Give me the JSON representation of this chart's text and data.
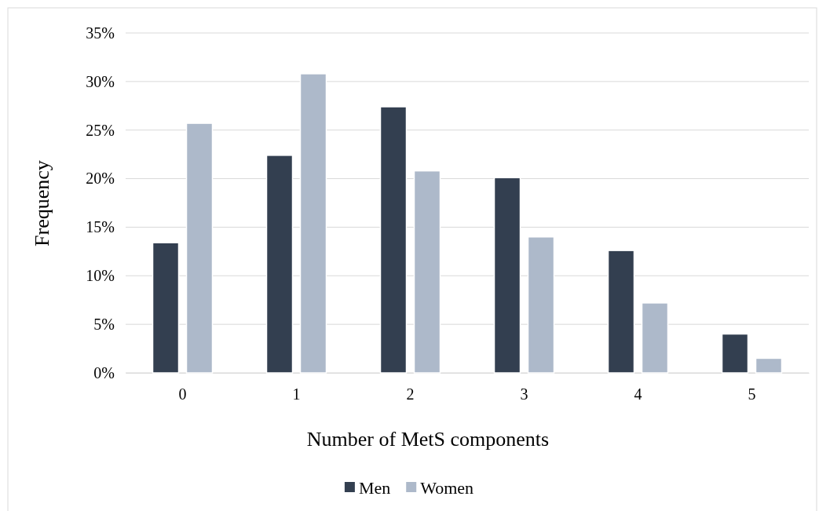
{
  "chart_data": {
    "type": "bar",
    "xlabel": "Number of MetS components",
    "ylabel": "Frequency",
    "categories": [
      "0",
      "1",
      "2",
      "3",
      "4",
      "5"
    ],
    "series": [
      {
        "name": "Men",
        "color": "#333f50",
        "values": [
          13.4,
          22.4,
          27.4,
          20.1,
          12.6,
          4.0
        ]
      },
      {
        "name": "Women",
        "color": "#adb9ca",
        "values": [
          25.7,
          30.8,
          20.8,
          14.0,
          7.2,
          1.5
        ]
      }
    ],
    "ylim": [
      0,
      35
    ],
    "yticks": [
      {
        "value": 0,
        "label": "0%"
      },
      {
        "value": 5,
        "label": "5%"
      },
      {
        "value": 10,
        "label": "10%"
      },
      {
        "value": 15,
        "label": "15%"
      },
      {
        "value": 20,
        "label": "20%"
      },
      {
        "value": 25,
        "label": "25%"
      },
      {
        "value": 30,
        "label": "30%"
      },
      {
        "value": 35,
        "label": "35%"
      }
    ],
    "grid": "y",
    "legend": "bottom"
  }
}
